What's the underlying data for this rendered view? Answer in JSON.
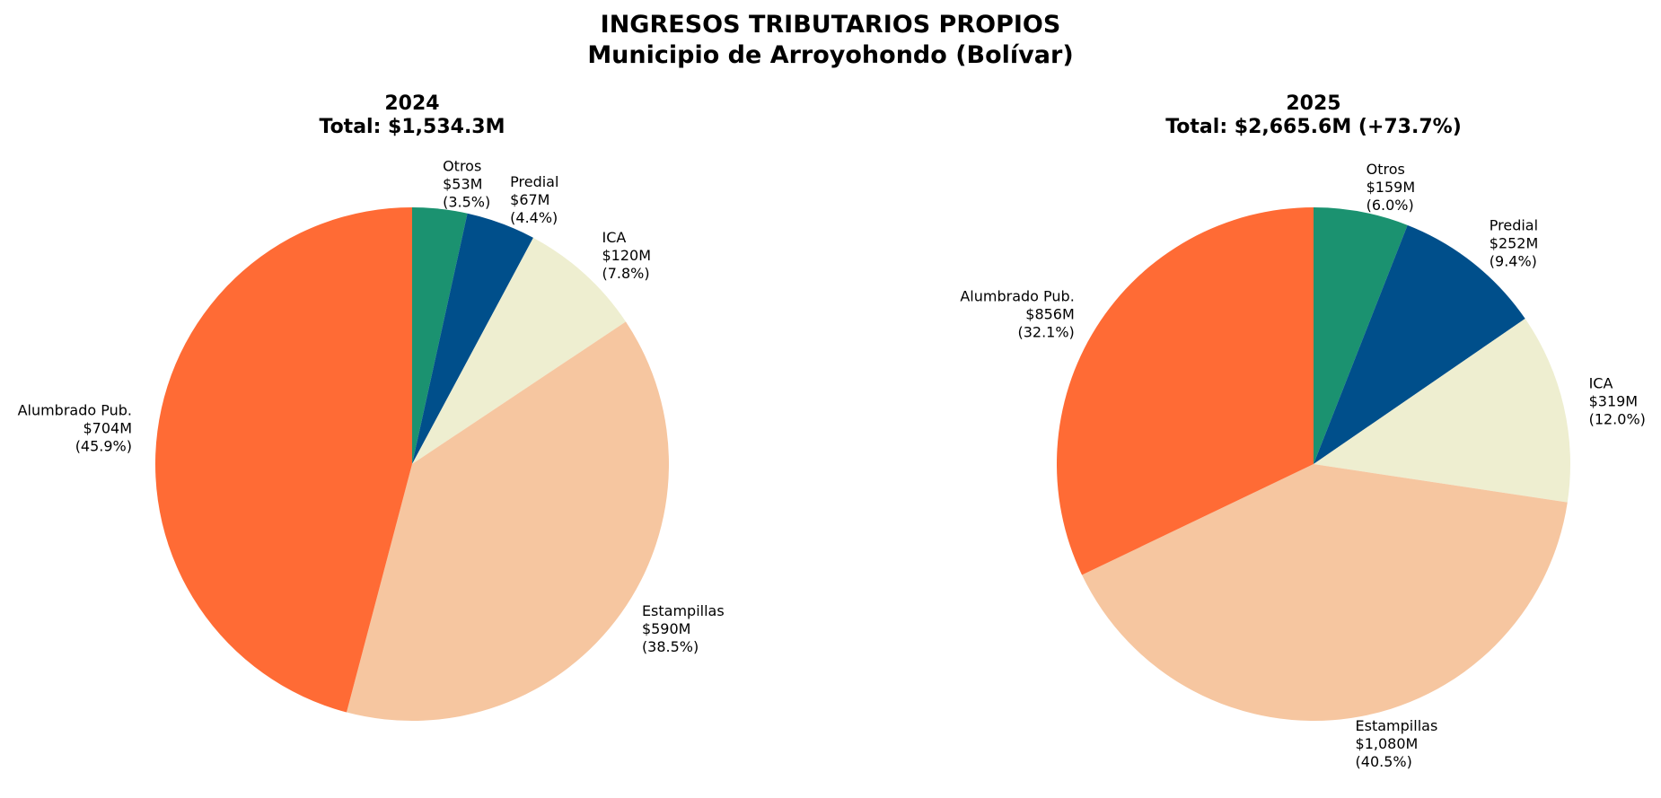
{
  "title": "INGRESOS TRIBUTARIOS PROPIOS",
  "subtitle": "Municipio de Arroyohondo (Bolívar)",
  "chart_data": [
    {
      "type": "pie",
      "title": "2024",
      "subtitle": "Total: $1,534.3M",
      "categories": [
        "Otros",
        "Predial",
        "ICA",
        "Estampillas",
        "Alumbrado Pub."
      ],
      "values": [
        53,
        67,
        120,
        590,
        704
      ],
      "value_labels": [
        "$53M",
        "$67M",
        "$120M",
        "$590M",
        "$704M"
      ],
      "percent_labels": [
        "(3.5%)",
        "(4.4%)",
        "(7.8%)",
        "(38.5%)",
        "(45.9%)"
      ],
      "colors": [
        "#1b9270",
        "#004f8b",
        "#eeeed0",
        "#f6c6a0",
        "#ff6b35"
      ]
    },
    {
      "type": "pie",
      "title": "2025",
      "subtitle": "Total: $2,665.6M (+73.7%)",
      "categories": [
        "Otros",
        "Predial",
        "ICA",
        "Estampillas",
        "Alumbrado Pub."
      ],
      "values": [
        159,
        252,
        319,
        1080,
        856
      ],
      "value_labels": [
        "$159M",
        "$252M",
        "$319M",
        "$1,080M",
        "$856M"
      ],
      "percent_labels": [
        "(6.0%)",
        "(9.4%)",
        "(12.0%)",
        "(40.5%)",
        "(32.1%)"
      ],
      "colors": [
        "#1b9270",
        "#004f8b",
        "#eeeed0",
        "#f6c6a0",
        "#ff6b35"
      ]
    }
  ]
}
